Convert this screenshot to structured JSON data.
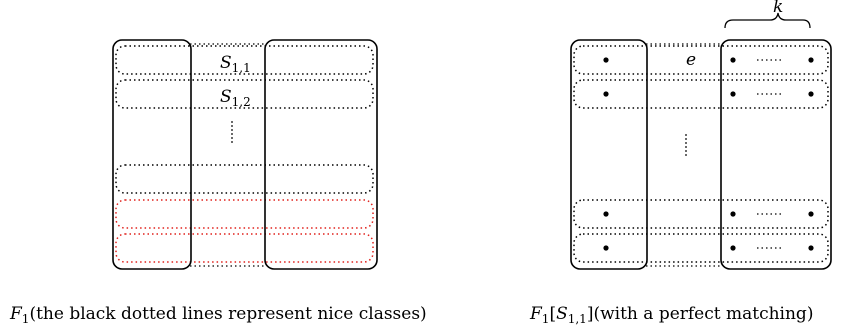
{
  "left_figure": {
    "labels": {
      "s11_main": "S",
      "s11_sub": "1,1",
      "s12_main": "S",
      "s12_sub": "1,2"
    },
    "caption_math": "F",
    "caption_sub": "1",
    "caption_text": "(the black dotted lines represent nice classes)",
    "class_color": "#000000",
    "highlight_color": "#e0201b"
  },
  "right_figure": {
    "k_label": "k",
    "e_label": "e",
    "caption_math": "F",
    "caption_sub": "1",
    "caption_bracket": "[",
    "caption_s": "S",
    "caption_s_sub": "1,1",
    "caption_close": "]",
    "caption_text": "(with a perfect matching)"
  }
}
